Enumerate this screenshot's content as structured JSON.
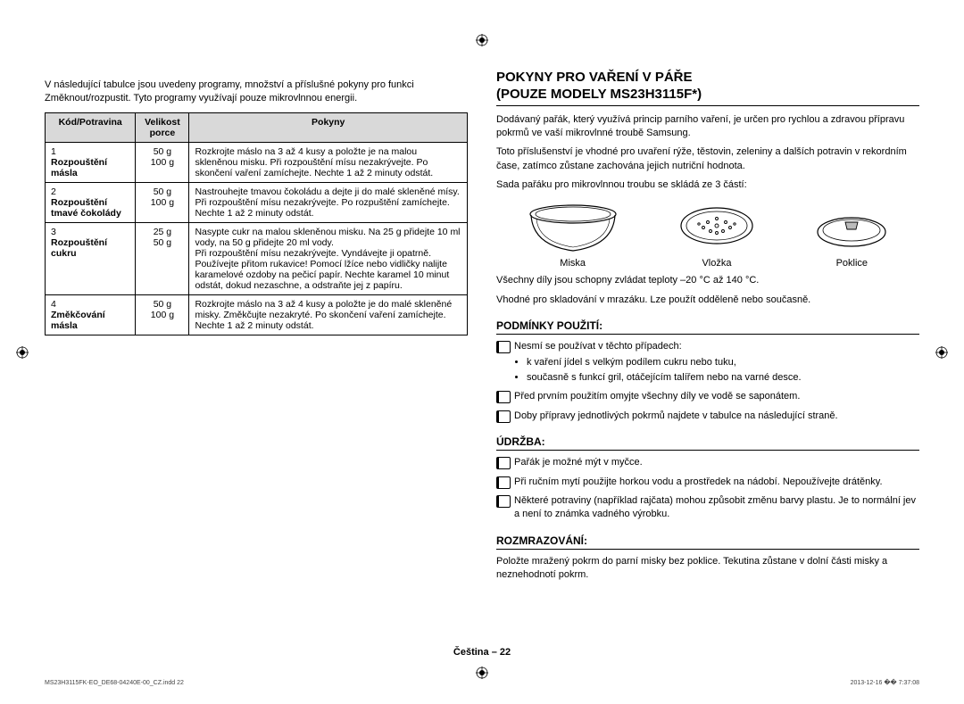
{
  "left": {
    "intro": "V následující tabulce jsou uvedeny programy, množství a příslušné pokyny pro funkci Změknout/rozpustit. Tyto programy využívají pouze mikrovlnnou energii.",
    "table": {
      "headers": [
        "Kód/Potravina",
        "Velikost porce",
        "Pokyny"
      ],
      "rows": [
        {
          "num": "1",
          "name": "Rozpouštění másla",
          "portion": "50 g\n100 g",
          "instr": "Rozkrojte máslo na 3 až 4 kusy a položte je na malou skleněnou misku. Při rozpouštění mísu nezakrývejte. Po skončení vaření zamíchejte. Nechte 1 až 2 minuty odstát."
        },
        {
          "num": "2",
          "name": "Rozpouštění tmavé čokolády",
          "portion": "50 g\n100 g",
          "instr": "Nastrouhejte tmavou čokoládu a dejte ji do malé skleněné mísy. Při rozpouštění mísu nezakrývejte. Po rozpuštění zamíchejte. Nechte 1 až 2 minuty odstát."
        },
        {
          "num": "3",
          "name": "Rozpouštění cukru",
          "portion": "25 g\n50 g",
          "instr": "Nasypte cukr na malou skleněnou misku. Na 25 g přidejte 10 ml vody, na 50 g přidejte 20 ml vody.\nPři rozpouštění mísu nezakrývejte. Vyndávejte ji opatrně. Používejte přitom rukavice! Pomocí lžíce nebo vidličky nalijte karamelové ozdoby na pečicí papír. Nechte karamel 10 minut odstát, dokud nezaschne, a odstraňte jej z papíru."
        },
        {
          "num": "4",
          "name": "Změkčování másla",
          "portion": "50 g\n100 g",
          "instr": "Rozkrojte máslo na 3 až 4 kusy a položte je do malé skleněné misky. Změkčujte nezakryté. Po skončení vaření zamíchejte. Nechte 1 až 2 minuty odstát."
        }
      ]
    }
  },
  "right": {
    "title1": "POKYNY PRO VAŘENÍ V PÁŘE",
    "title2": "(POUZE MODELY MS23H3115F*)",
    "p1": "Dodávaný pařák, který využívá princip parního vaření, je určen pro rychlou a zdravou přípravu pokrmů ve vaší mikrovlnné troubě Samsung.",
    "p2": "Toto příslušenství je vhodné pro uvaření rýže, těstovin, zeleniny a dalších potravin v rekordním čase, zatímco zůstane zachována jejich nutriční hodnota.",
    "p3": "Sada pařáku pro mikrovlnnou troubu se skládá ze 3 částí:",
    "parts": [
      "Miska",
      "Vložka",
      "Poklice"
    ],
    "p4": "Všechny díly jsou schopny zvládat teploty –20 °C až 140 °C.",
    "p5": "Vhodné pro skladování v mrazáku. Lze použít odděleně nebo současně.",
    "conditions_title": "PODMÍNKY POUŽITÍ:",
    "conditions": [
      {
        "text": "Nesmí se používat v těchto případech:",
        "sub": [
          "k vaření jídel s velkým podílem cukru nebo tuku,",
          "současně s funkcí gril, otáčejícím talířem nebo na varné desce."
        ]
      },
      {
        "text": "Před prvním použitím omyjte všechny díly ve vodě se saponátem."
      },
      {
        "text": "Doby přípravy jednotlivých pokrmů najdete v tabulce na následující straně."
      }
    ],
    "maint_title": "ÚDRŽBA:",
    "maint": [
      {
        "text": "Pařák je možné mýt v myčce."
      },
      {
        "text": "Při ručním mytí použijte horkou vodu a prostředek na nádobí. Nepoužívejte drátěnky."
      },
      {
        "text": "Některé potraviny (například rajčata) mohou způsobit změnu barvy plastu. Je to normální jev a není to známka vadného výrobku."
      }
    ],
    "defrost_title": "ROZMRAZOVÁNÍ:",
    "defrost": "Položte mražený pokrm do parní misky bez poklice. Tekutina zůstane v dolní části misky a neznehodnotí pokrm."
  },
  "footer": {
    "center": "Čeština – 22",
    "left": "MS23H3115FK-EO_DE68-04240E-00_CZ.indd   22",
    "right": "2013-12-16   �� 7:37:08"
  }
}
